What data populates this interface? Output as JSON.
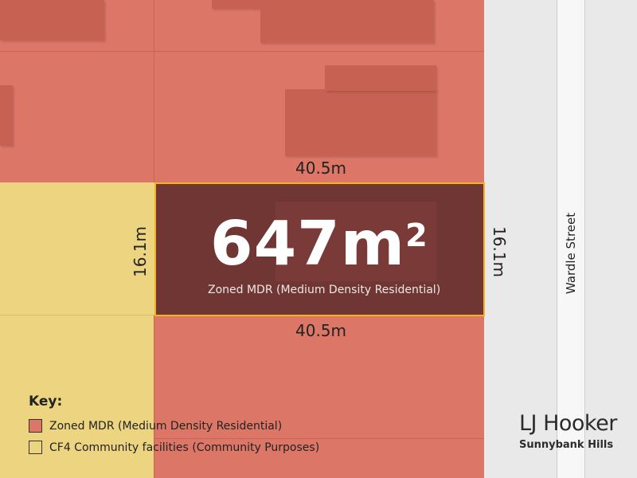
{
  "lot": {
    "area_number": "647m",
    "area_superscript": "2",
    "zoning_label": "Zoned MDR (Medium Density Residential)",
    "width_top": "40.5m",
    "width_bottom": "40.5m",
    "depth_left": "16.1m",
    "depth_right": "16.1m"
  },
  "street": {
    "name": "Wardle Street"
  },
  "key": {
    "title": "Key:",
    "items": [
      {
        "label": "Zoned MDR (Medium Density Residential)",
        "color": "#dc7767"
      },
      {
        "label": "CF4 Community facilities (Community Purposes)",
        "color": "#edd480"
      }
    ]
  },
  "brand": {
    "name": "LJ Hooker",
    "office": "Sunnybank Hills"
  },
  "colors": {
    "mdr": "#dc7767",
    "cf4": "#edd480",
    "lot_fill": "#6f3634",
    "lot_border": "#f2b31c",
    "road": "#e9e9e9"
  }
}
